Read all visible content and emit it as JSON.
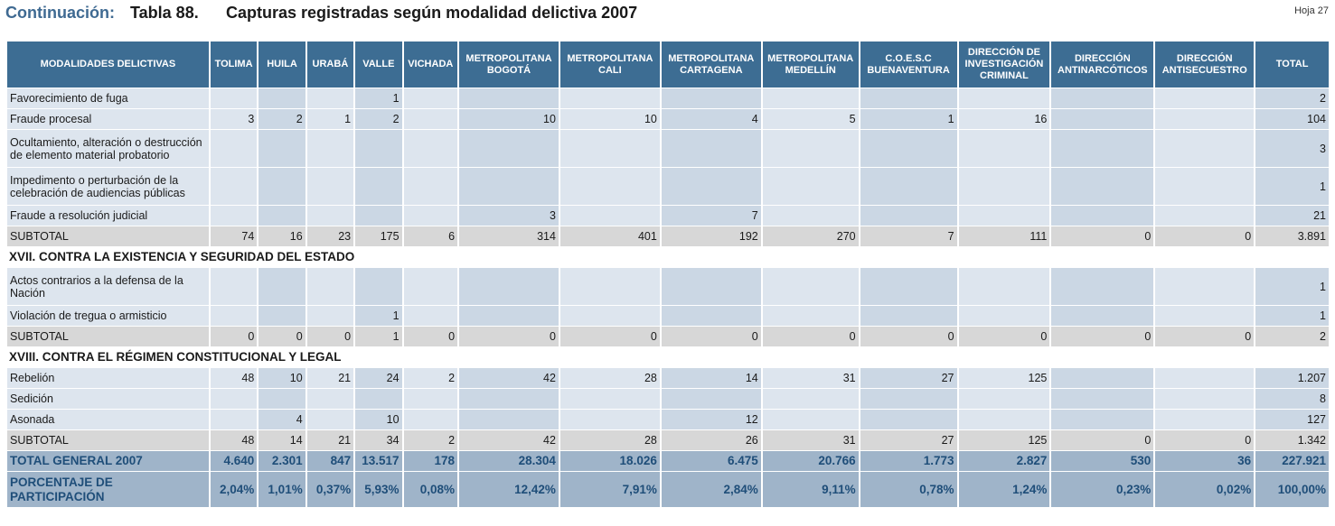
{
  "header": {
    "prefix": "Continuación:",
    "table_label": "Tabla 88.",
    "title": "Capturas registradas según modalidad delictiva 2007",
    "sheet": "Hoja 27"
  },
  "columns": [
    "MODALIDADES DELICTIVAS",
    "TOLIMA",
    "HUILA",
    "URABÁ",
    "VALLE",
    "VICHADA",
    "METROPOLITANA BOGOTÁ",
    "METROPOLITANA CALI",
    "METROPOLITANA CARTAGENA",
    "METROPOLITANA MEDELLÍN",
    "C.O.E.S.C BUENAVENTURA",
    "DIRECCIÓN DE INVESTIGACIÓN CRIMINAL",
    "DIRECCIÓN ANTINARCÓTICOS",
    "DIRECCIÓN ANTISECUESTRO",
    "TOTAL"
  ],
  "rows": [
    {
      "type": "data",
      "cells": [
        "Favorecimiento de fuga",
        "",
        "",
        "",
        "1",
        "",
        "",
        "",
        "",
        "",
        "",
        "",
        "",
        "",
        "2"
      ]
    },
    {
      "type": "data",
      "cells": [
        "Fraude procesal",
        "3",
        "2",
        "1",
        "2",
        "",
        "10",
        "10",
        "4",
        "5",
        "1",
        "16",
        "",
        "",
        "104"
      ]
    },
    {
      "type": "data",
      "tall": true,
      "cells": [
        "Ocultamiento, alteración o destrucción de elemento material probatorio",
        "",
        "",
        "",
        "",
        "",
        "",
        "",
        "",
        "",
        "",
        "",
        "",
        "",
        "3"
      ]
    },
    {
      "type": "data",
      "tall": true,
      "cells": [
        "Impedimento o perturbación de la celebración de audiencias públicas",
        "",
        "",
        "",
        "",
        "",
        "",
        "",
        "",
        "",
        "",
        "",
        "",
        "",
        "1"
      ]
    },
    {
      "type": "data",
      "cells": [
        "Fraude a resolución judicial",
        "",
        "",
        "",
        "",
        "",
        "3",
        "",
        "7",
        "",
        "",
        "",
        "",
        "",
        "21"
      ]
    },
    {
      "type": "subtotal",
      "cells": [
        "SUBTOTAL",
        "74",
        "16",
        "23",
        "175",
        "6",
        "314",
        "401",
        "192",
        "270",
        "7",
        "111",
        "0",
        "0",
        "3.891"
      ]
    },
    {
      "type": "section",
      "cells": [
        "XVII. CONTRA LA EXISTENCIA Y SEGURIDAD DEL ESTADO"
      ]
    },
    {
      "type": "data",
      "tall": true,
      "cells": [
        "Actos contrarios a la defensa de la Nación",
        "",
        "",
        "",
        "",
        "",
        "",
        "",
        "",
        "",
        "",
        "",
        "",
        "",
        "1"
      ]
    },
    {
      "type": "data",
      "cells": [
        "Violación de tregua o armisticio",
        "",
        "",
        "",
        "1",
        "",
        "",
        "",
        "",
        "",
        "",
        "",
        "",
        "",
        "1"
      ]
    },
    {
      "type": "subtotal",
      "cells": [
        "SUBTOTAL",
        "0",
        "0",
        "0",
        "1",
        "0",
        "0",
        "0",
        "0",
        "0",
        "0",
        "0",
        "0",
        "0",
        "2"
      ]
    },
    {
      "type": "section",
      "cells": [
        "XVIII. CONTRA EL RÉGIMEN CONSTITUCIONAL Y LEGAL"
      ]
    },
    {
      "type": "data",
      "cells": [
        "Rebelión",
        "48",
        "10",
        "21",
        "24",
        "2",
        "42",
        "28",
        "14",
        "31",
        "27",
        "125",
        "",
        "",
        "1.207"
      ]
    },
    {
      "type": "data",
      "cells": [
        "Sedición",
        "",
        "",
        "",
        "",
        "",
        "",
        "",
        "",
        "",
        "",
        "",
        "",
        "",
        "8"
      ]
    },
    {
      "type": "data",
      "cells": [
        "Asonada",
        "",
        "4",
        "",
        "10",
        "",
        "",
        "",
        "12",
        "",
        "",
        "",
        "",
        "",
        "127"
      ]
    },
    {
      "type": "subtotal",
      "cells": [
        "SUBTOTAL",
        "48",
        "14",
        "21",
        "34",
        "2",
        "42",
        "28",
        "26",
        "31",
        "27",
        "125",
        "0",
        "0",
        "1.342"
      ]
    },
    {
      "type": "total",
      "cells": [
        "TOTAL GENERAL 2007",
        "4.640",
        "2.301",
        "847",
        "13.517",
        "178",
        "28.304",
        "18.026",
        "6.475",
        "20.766",
        "1.773",
        "2.827",
        "530",
        "36",
        "227.921"
      ]
    },
    {
      "type": "pct",
      "cells": [
        "PORCENTAJE DE PARTICIPACIÓN",
        "2,04%",
        "1,01%",
        "0,37%",
        "5,93%",
        "0,08%",
        "12,42%",
        "7,91%",
        "2,84%",
        "9,11%",
        "0,78%",
        "1,24%",
        "0,23%",
        "0,02%",
        "100,00%"
      ]
    }
  ]
}
